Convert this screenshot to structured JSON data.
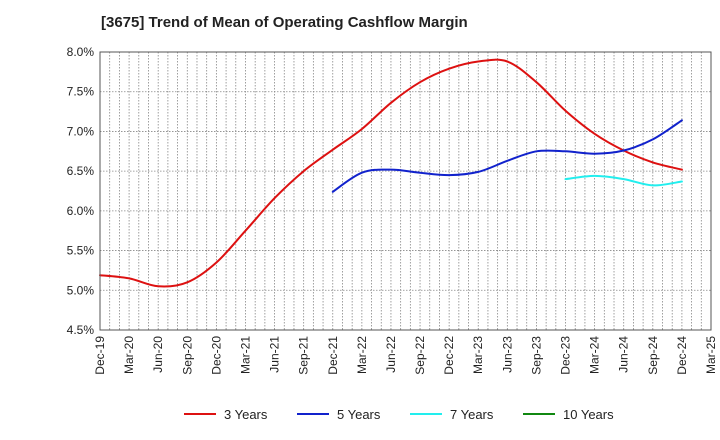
{
  "chart_data": {
    "type": "line",
    "title": "[3675]  Trend of Mean of Operating Cashflow Margin",
    "xlabel": "",
    "ylabel": "",
    "x_tick_labels": [
      "Dec-19",
      "Mar-20",
      "Jun-20",
      "Sep-20",
      "Dec-20",
      "Mar-21",
      "Jun-21",
      "Sep-21",
      "Dec-21",
      "Mar-22",
      "Jun-22",
      "Sep-22",
      "Dec-22",
      "Mar-23",
      "Jun-23",
      "Sep-23",
      "Dec-23",
      "Mar-24",
      "Jun-24",
      "Sep-24",
      "Dec-24",
      "Mar-25"
    ],
    "y_tick_labels": [
      "8.0%",
      "7.5%",
      "7.0%",
      "6.5%",
      "6.0%",
      "5.5%",
      "5.0%",
      "4.5%"
    ],
    "ylim": [
      4.5,
      8.0
    ],
    "y_unit": "%",
    "grid": true,
    "legend_position": "bottom",
    "series": [
      {
        "name": "3 Years",
        "color": "#dd1111",
        "x": [
          "Dec-19",
          "Mar-20",
          "Jun-20",
          "Sep-20",
          "Dec-20",
          "Mar-21",
          "Jun-21",
          "Sep-21",
          "Dec-21",
          "Mar-22",
          "Jun-22",
          "Sep-22",
          "Dec-22",
          "Mar-23",
          "Jun-23",
          "Sep-23",
          "Dec-23",
          "Mar-24",
          "Jun-24",
          "Sep-24",
          "Dec-24"
        ],
        "values": [
          5.19,
          5.15,
          5.05,
          5.1,
          5.35,
          5.75,
          6.16,
          6.5,
          6.77,
          7.03,
          7.36,
          7.62,
          7.79,
          7.88,
          7.88,
          7.62,
          7.26,
          6.97,
          6.76,
          6.61,
          6.52
        ]
      },
      {
        "name": "5 Years",
        "color": "#1122cc",
        "x": [
          "Dec-21",
          "Mar-22",
          "Jun-22",
          "Sep-22",
          "Dec-22",
          "Mar-23",
          "Jun-23",
          "Sep-23",
          "Dec-23",
          "Mar-24",
          "Jun-24",
          "Sep-24",
          "Dec-24"
        ],
        "values": [
          6.24,
          6.48,
          6.52,
          6.48,
          6.45,
          6.49,
          6.63,
          6.75,
          6.75,
          6.72,
          6.76,
          6.9,
          7.14
        ]
      },
      {
        "name": "7 Years",
        "color": "#22eeee",
        "x": [
          "Dec-23",
          "Mar-24",
          "Jun-24",
          "Sep-24",
          "Dec-24"
        ],
        "values": [
          6.4,
          6.44,
          6.4,
          6.32,
          6.37
        ]
      },
      {
        "name": "10 Years",
        "color": "#118811",
        "x": [],
        "values": []
      }
    ]
  }
}
